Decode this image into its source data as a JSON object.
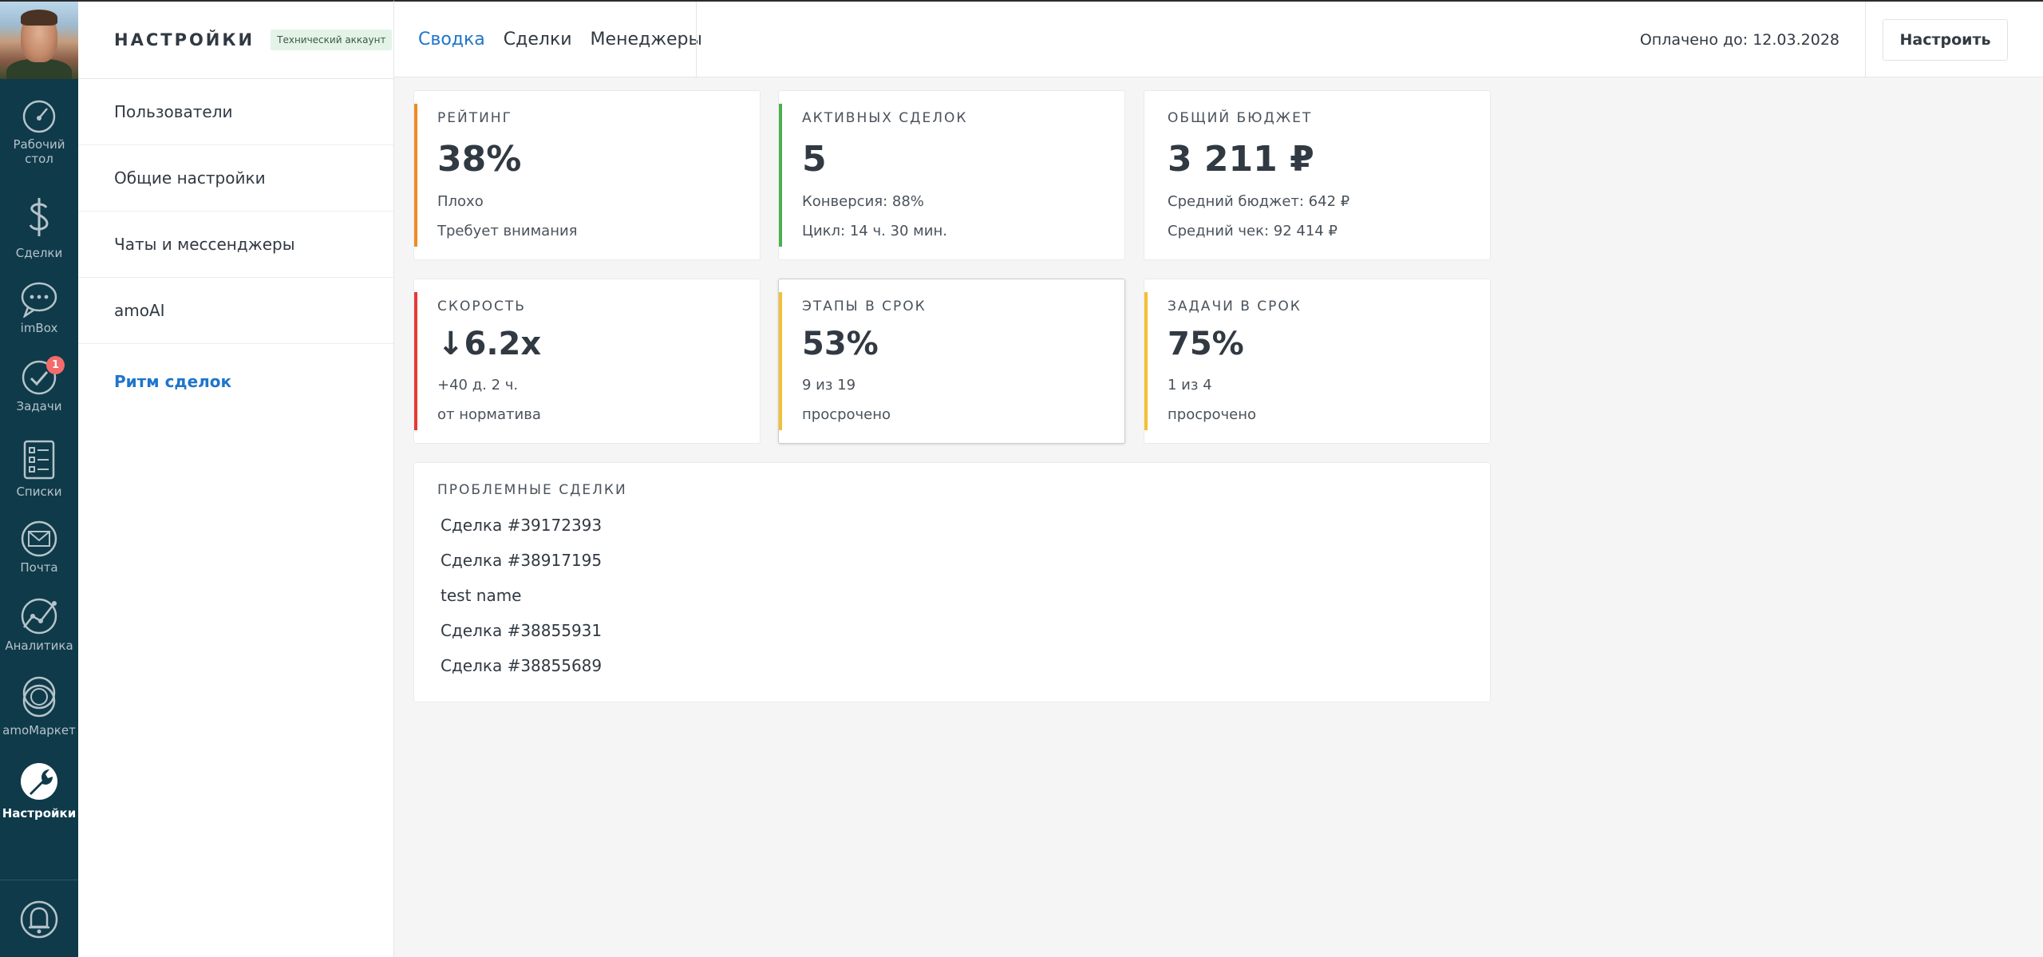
{
  "rail": {
    "items": [
      {
        "label_line1": "Рабочий",
        "label_line2": "стол",
        "icon": "dashboard-icon"
      },
      {
        "label_line1": "Сделки",
        "icon": "dollar-icon"
      },
      {
        "label_line1": "imBox",
        "icon": "chat-bubble-icon"
      },
      {
        "label_line1": "Задачи",
        "icon": "checkmark-icon",
        "badge": "1"
      },
      {
        "label_line1": "Списки",
        "icon": "list-icon"
      },
      {
        "label_line1": "Почта",
        "icon": "envelope-icon"
      },
      {
        "label_line1": "Аналитика",
        "icon": "chart-line-icon"
      },
      {
        "label_line1": "amoМаркет",
        "icon": "market-icon"
      },
      {
        "label_line1": "Настройки",
        "icon": "wrench-icon",
        "active": true
      }
    ],
    "bottom_icon": "bell-icon"
  },
  "sidebar": {
    "title": "НАСТРОЙКИ",
    "badge": "Технический аккаунт",
    "items": [
      {
        "label": "Пользователи"
      },
      {
        "label": "Общие настройки"
      },
      {
        "label": "Чаты и мессенджеры"
      },
      {
        "label": "amoAI"
      },
      {
        "label": "Ритм сделок",
        "active": true
      }
    ]
  },
  "topbar": {
    "tabs": [
      {
        "label": "Сводка",
        "active": true
      },
      {
        "label": "Сделки"
      },
      {
        "label": "Менеджеры"
      }
    ],
    "paid_until": "Оплачено до: 12.03.2028",
    "configure_label": "Настроить"
  },
  "cards": {
    "rating": {
      "title": "РЕЙТИНГ",
      "value": "38%",
      "line1": "Плохо",
      "line2": "Требует внимания",
      "color": "#f08a24"
    },
    "active": {
      "title": "АКТИВНЫХ СДЕЛОК",
      "value": "5",
      "line1": "Конверсия: 88%",
      "line2": "Цикл: 14 ч. 30 мин.",
      "color": "#4caf50"
    },
    "budget": {
      "title": "ОБЩИЙ БЮДЖЕТ",
      "value": "3 211 ₽",
      "line1": "Средний бюджет: 642 ₽",
      "line2": "Средний чек: 92 414 ₽"
    },
    "speed": {
      "title": "СКОРОСТЬ",
      "value": "↓6.2x",
      "line1": "+40 д. 2 ч.",
      "line2": "от норматива",
      "color": "#e53935"
    },
    "stages": {
      "title": "ЭТАПЫ В СРОК",
      "value": "53%",
      "line1": "9 из 19",
      "line2": "просрочено",
      "color": "#f5c02e"
    },
    "tasks": {
      "title": "ЗАДАЧИ В СРОК",
      "value": "75%",
      "line1": "1 из 4",
      "line2": "просрочено",
      "color": "#f5c02e"
    }
  },
  "problems": {
    "title": "ПРОБЛЕМНЫЕ СДЕЛКИ",
    "deals": [
      "Сделка #39172393",
      "Сделка #38917195",
      "test name",
      "Сделка #38855931",
      "Сделка #38855689"
    ]
  }
}
